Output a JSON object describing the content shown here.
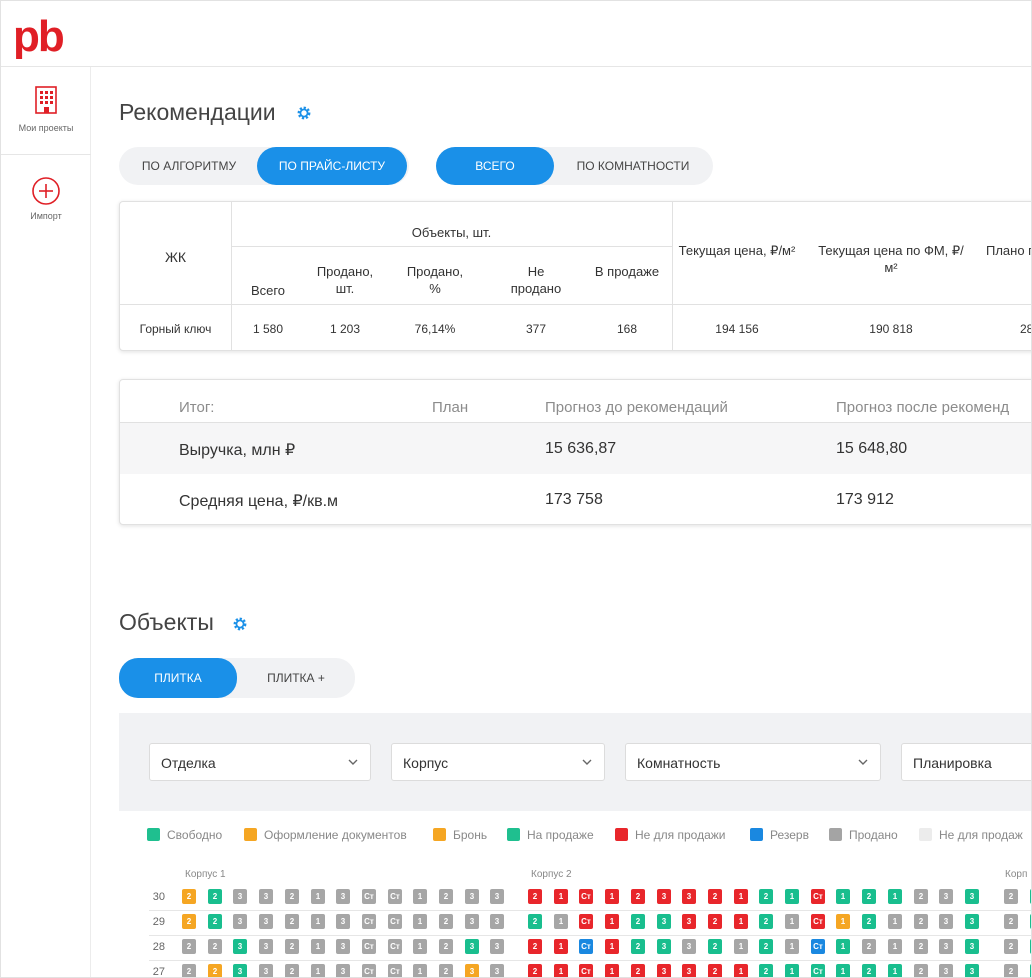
{
  "brand": {
    "logo_text": "pb",
    "accent": "#e01f26"
  },
  "sidebar": {
    "items": [
      {
        "label": "Мои проекты",
        "icon": "building-icon"
      },
      {
        "label": "Импорт",
        "icon": "plus-circle-icon"
      }
    ]
  },
  "recommendations": {
    "title": "Рекомендации",
    "mode_tabs": [
      {
        "label": "ПО АЛГОРИТМУ",
        "active": false
      },
      {
        "label": "ПО ПРАЙС-ЛИСТУ",
        "active": true
      }
    ],
    "group_tabs": [
      {
        "label": "ВСЕГО",
        "active": true
      },
      {
        "label": "ПО КОМНАТНОСТИ",
        "active": false
      }
    ],
    "table": {
      "header_zhk": "ЖК",
      "header_objects": "Объекты, шт.",
      "sub_headers": [
        "Всего",
        "Продано, шт.",
        "Продано, %",
        "Не продано",
        "В продаже"
      ],
      "header_current_price": "Текущая цена, ₽/м²",
      "header_current_price_fm": "Текущая цена по ФМ, ₽/м²",
      "header_plan": "Плано г",
      "row": {
        "name": "Горный ключ",
        "total": "1 580",
        "sold": "1 203",
        "sold_pct": "76,14%",
        "unsold": "377",
        "on_sale": "168",
        "price": "194 156",
        "price_fm": "190 818",
        "plan": "28"
      }
    },
    "summary": {
      "headers": [
        "Итог:",
        "План",
        "Прогноз до рекомендаций",
        "Прогноз после рекоменд"
      ],
      "rows": [
        {
          "label": "Выручка, млн ₽",
          "plan": "",
          "before": "15 636,87",
          "after": "15 648,80"
        },
        {
          "label": "Средняя цена, ₽/кв.м",
          "plan": "",
          "before": "173 758",
          "after": "173 912"
        }
      ]
    }
  },
  "objects": {
    "title": "Объекты",
    "view_tabs": [
      {
        "label": "ПЛИТКА",
        "active": true
      },
      {
        "label": "ПЛИТКА +",
        "active": false
      }
    ],
    "filters": [
      "Отделка",
      "Корпус",
      "Комнатность",
      "Планировка"
    ],
    "legend": [
      {
        "label": "Свободно",
        "color": "#1fbf8f"
      },
      {
        "label": "Оформление документов",
        "color": "#f5a623"
      },
      {
        "label": "Бронь",
        "color": "#f5a623"
      },
      {
        "label": "На продаже",
        "color": "#1fbf8f"
      },
      {
        "label": "Не для продажи",
        "color": "#e8262b"
      },
      {
        "label": "Резерв",
        "color": "#1a88e0"
      },
      {
        "label": "Продано",
        "color": "#a4a4a4"
      },
      {
        "label": "Не для продаж",
        "color": "#ececec"
      }
    ],
    "buildings": [
      "Корпус 1",
      "Корпус 2",
      "Корп"
    ],
    "floors": [
      "30",
      "29",
      "28",
      "27"
    ],
    "status_colors": {
      "g": "#a6a6a6",
      "o": "#f5a623",
      "t": "#19be8e",
      "r": "#e8262b",
      "b": "#1a88e0"
    },
    "rows": [
      {
        "floor": "30",
        "k1": [
          [
            "o",
            "2"
          ],
          [
            "t",
            "2"
          ],
          [
            "g",
            "3"
          ],
          [
            "g",
            "3"
          ],
          [
            "g",
            "2"
          ],
          [
            "g",
            "1"
          ],
          [
            "g",
            "3"
          ],
          [
            "g",
            "Ст"
          ],
          [
            "g",
            "Ст"
          ],
          [
            "g",
            "1"
          ],
          [
            "g",
            "2"
          ],
          [
            "g",
            "3"
          ],
          [
            "g",
            "3"
          ]
        ],
        "k2": [
          [
            "r",
            "2"
          ],
          [
            "r",
            "1"
          ],
          [
            "r",
            "Ст"
          ],
          [
            "r",
            "1"
          ],
          [
            "r",
            "2"
          ],
          [
            "r",
            "3"
          ],
          [
            "r",
            "3"
          ],
          [
            "r",
            "2"
          ],
          [
            "r",
            "1"
          ],
          [
            "t",
            "2"
          ],
          [
            "t",
            "1"
          ],
          [
            "r",
            "Ст"
          ],
          [
            "t",
            "1"
          ],
          [
            "t",
            "2"
          ],
          [
            "t",
            "1"
          ],
          [
            "g",
            "2"
          ],
          [
            "g",
            "3"
          ],
          [
            "t",
            "3"
          ]
        ],
        "k3": [
          [
            "g",
            "2"
          ],
          [
            "t",
            "2"
          ]
        ]
      },
      {
        "floor": "29",
        "k1": [
          [
            "o",
            "2"
          ],
          [
            "t",
            "2"
          ],
          [
            "g",
            "3"
          ],
          [
            "g",
            "3"
          ],
          [
            "g",
            "2"
          ],
          [
            "g",
            "1"
          ],
          [
            "g",
            "3"
          ],
          [
            "g",
            "Ст"
          ],
          [
            "g",
            "Ст"
          ],
          [
            "g",
            "1"
          ],
          [
            "g",
            "2"
          ],
          [
            "g",
            "3"
          ],
          [
            "g",
            "3"
          ]
        ],
        "k2": [
          [
            "t",
            "2"
          ],
          [
            "g",
            "1"
          ],
          [
            "r",
            "Ст"
          ],
          [
            "r",
            "1"
          ],
          [
            "t",
            "2"
          ],
          [
            "t",
            "3"
          ],
          [
            "r",
            "3"
          ],
          [
            "r",
            "2"
          ],
          [
            "r",
            "1"
          ],
          [
            "t",
            "2"
          ],
          [
            "g",
            "1"
          ],
          [
            "r",
            "Ст"
          ],
          [
            "o",
            "1"
          ],
          [
            "t",
            "2"
          ],
          [
            "g",
            "1"
          ],
          [
            "g",
            "2"
          ],
          [
            "g",
            "3"
          ],
          [
            "t",
            "3"
          ]
        ],
        "k3": [
          [
            "g",
            "2"
          ],
          [
            "t",
            "2"
          ]
        ]
      },
      {
        "floor": "28",
        "k1": [
          [
            "g",
            "2"
          ],
          [
            "g",
            "2"
          ],
          [
            "t",
            "3"
          ],
          [
            "g",
            "3"
          ],
          [
            "g",
            "2"
          ],
          [
            "g",
            "1"
          ],
          [
            "g",
            "3"
          ],
          [
            "g",
            "Ст"
          ],
          [
            "g",
            "Ст"
          ],
          [
            "g",
            "1"
          ],
          [
            "g",
            "2"
          ],
          [
            "t",
            "3"
          ],
          [
            "g",
            "3"
          ]
        ],
        "k2": [
          [
            "r",
            "2"
          ],
          [
            "r",
            "1"
          ],
          [
            "b",
            "Ст"
          ],
          [
            "r",
            "1"
          ],
          [
            "t",
            "2"
          ],
          [
            "t",
            "3"
          ],
          [
            "g",
            "3"
          ],
          [
            "t",
            "2"
          ],
          [
            "g",
            "1"
          ],
          [
            "t",
            "2"
          ],
          [
            "g",
            "1"
          ],
          [
            "b",
            "Ст"
          ],
          [
            "t",
            "1"
          ],
          [
            "g",
            "2"
          ],
          [
            "g",
            "1"
          ],
          [
            "g",
            "2"
          ],
          [
            "g",
            "3"
          ],
          [
            "t",
            "3"
          ]
        ],
        "k3": [
          [
            "g",
            "2"
          ],
          [
            "t",
            "2"
          ]
        ]
      },
      {
        "floor": "27",
        "k1": [
          [
            "g",
            "2"
          ],
          [
            "o",
            "2"
          ],
          [
            "t",
            "3"
          ],
          [
            "g",
            "3"
          ],
          [
            "g",
            "2"
          ],
          [
            "g",
            "1"
          ],
          [
            "g",
            "3"
          ],
          [
            "g",
            "Ст"
          ],
          [
            "g",
            "Ст"
          ],
          [
            "g",
            "1"
          ],
          [
            "g",
            "2"
          ],
          [
            "o",
            "3"
          ],
          [
            "g",
            "3"
          ]
        ],
        "k2": [
          [
            "r",
            "2"
          ],
          [
            "r",
            "1"
          ],
          [
            "r",
            "Ст"
          ],
          [
            "r",
            "1"
          ],
          [
            "r",
            "2"
          ],
          [
            "r",
            "3"
          ],
          [
            "r",
            "3"
          ],
          [
            "r",
            "2"
          ],
          [
            "r",
            "1"
          ],
          [
            "t",
            "2"
          ],
          [
            "t",
            "1"
          ],
          [
            "t",
            "Ст"
          ],
          [
            "t",
            "1"
          ],
          [
            "t",
            "2"
          ],
          [
            "t",
            "1"
          ],
          [
            "g",
            "2"
          ],
          [
            "g",
            "3"
          ],
          [
            "t",
            "3"
          ]
        ],
        "k3": [
          [
            "g",
            "2"
          ],
          [
            "t",
            "2"
          ]
        ]
      }
    ]
  }
}
